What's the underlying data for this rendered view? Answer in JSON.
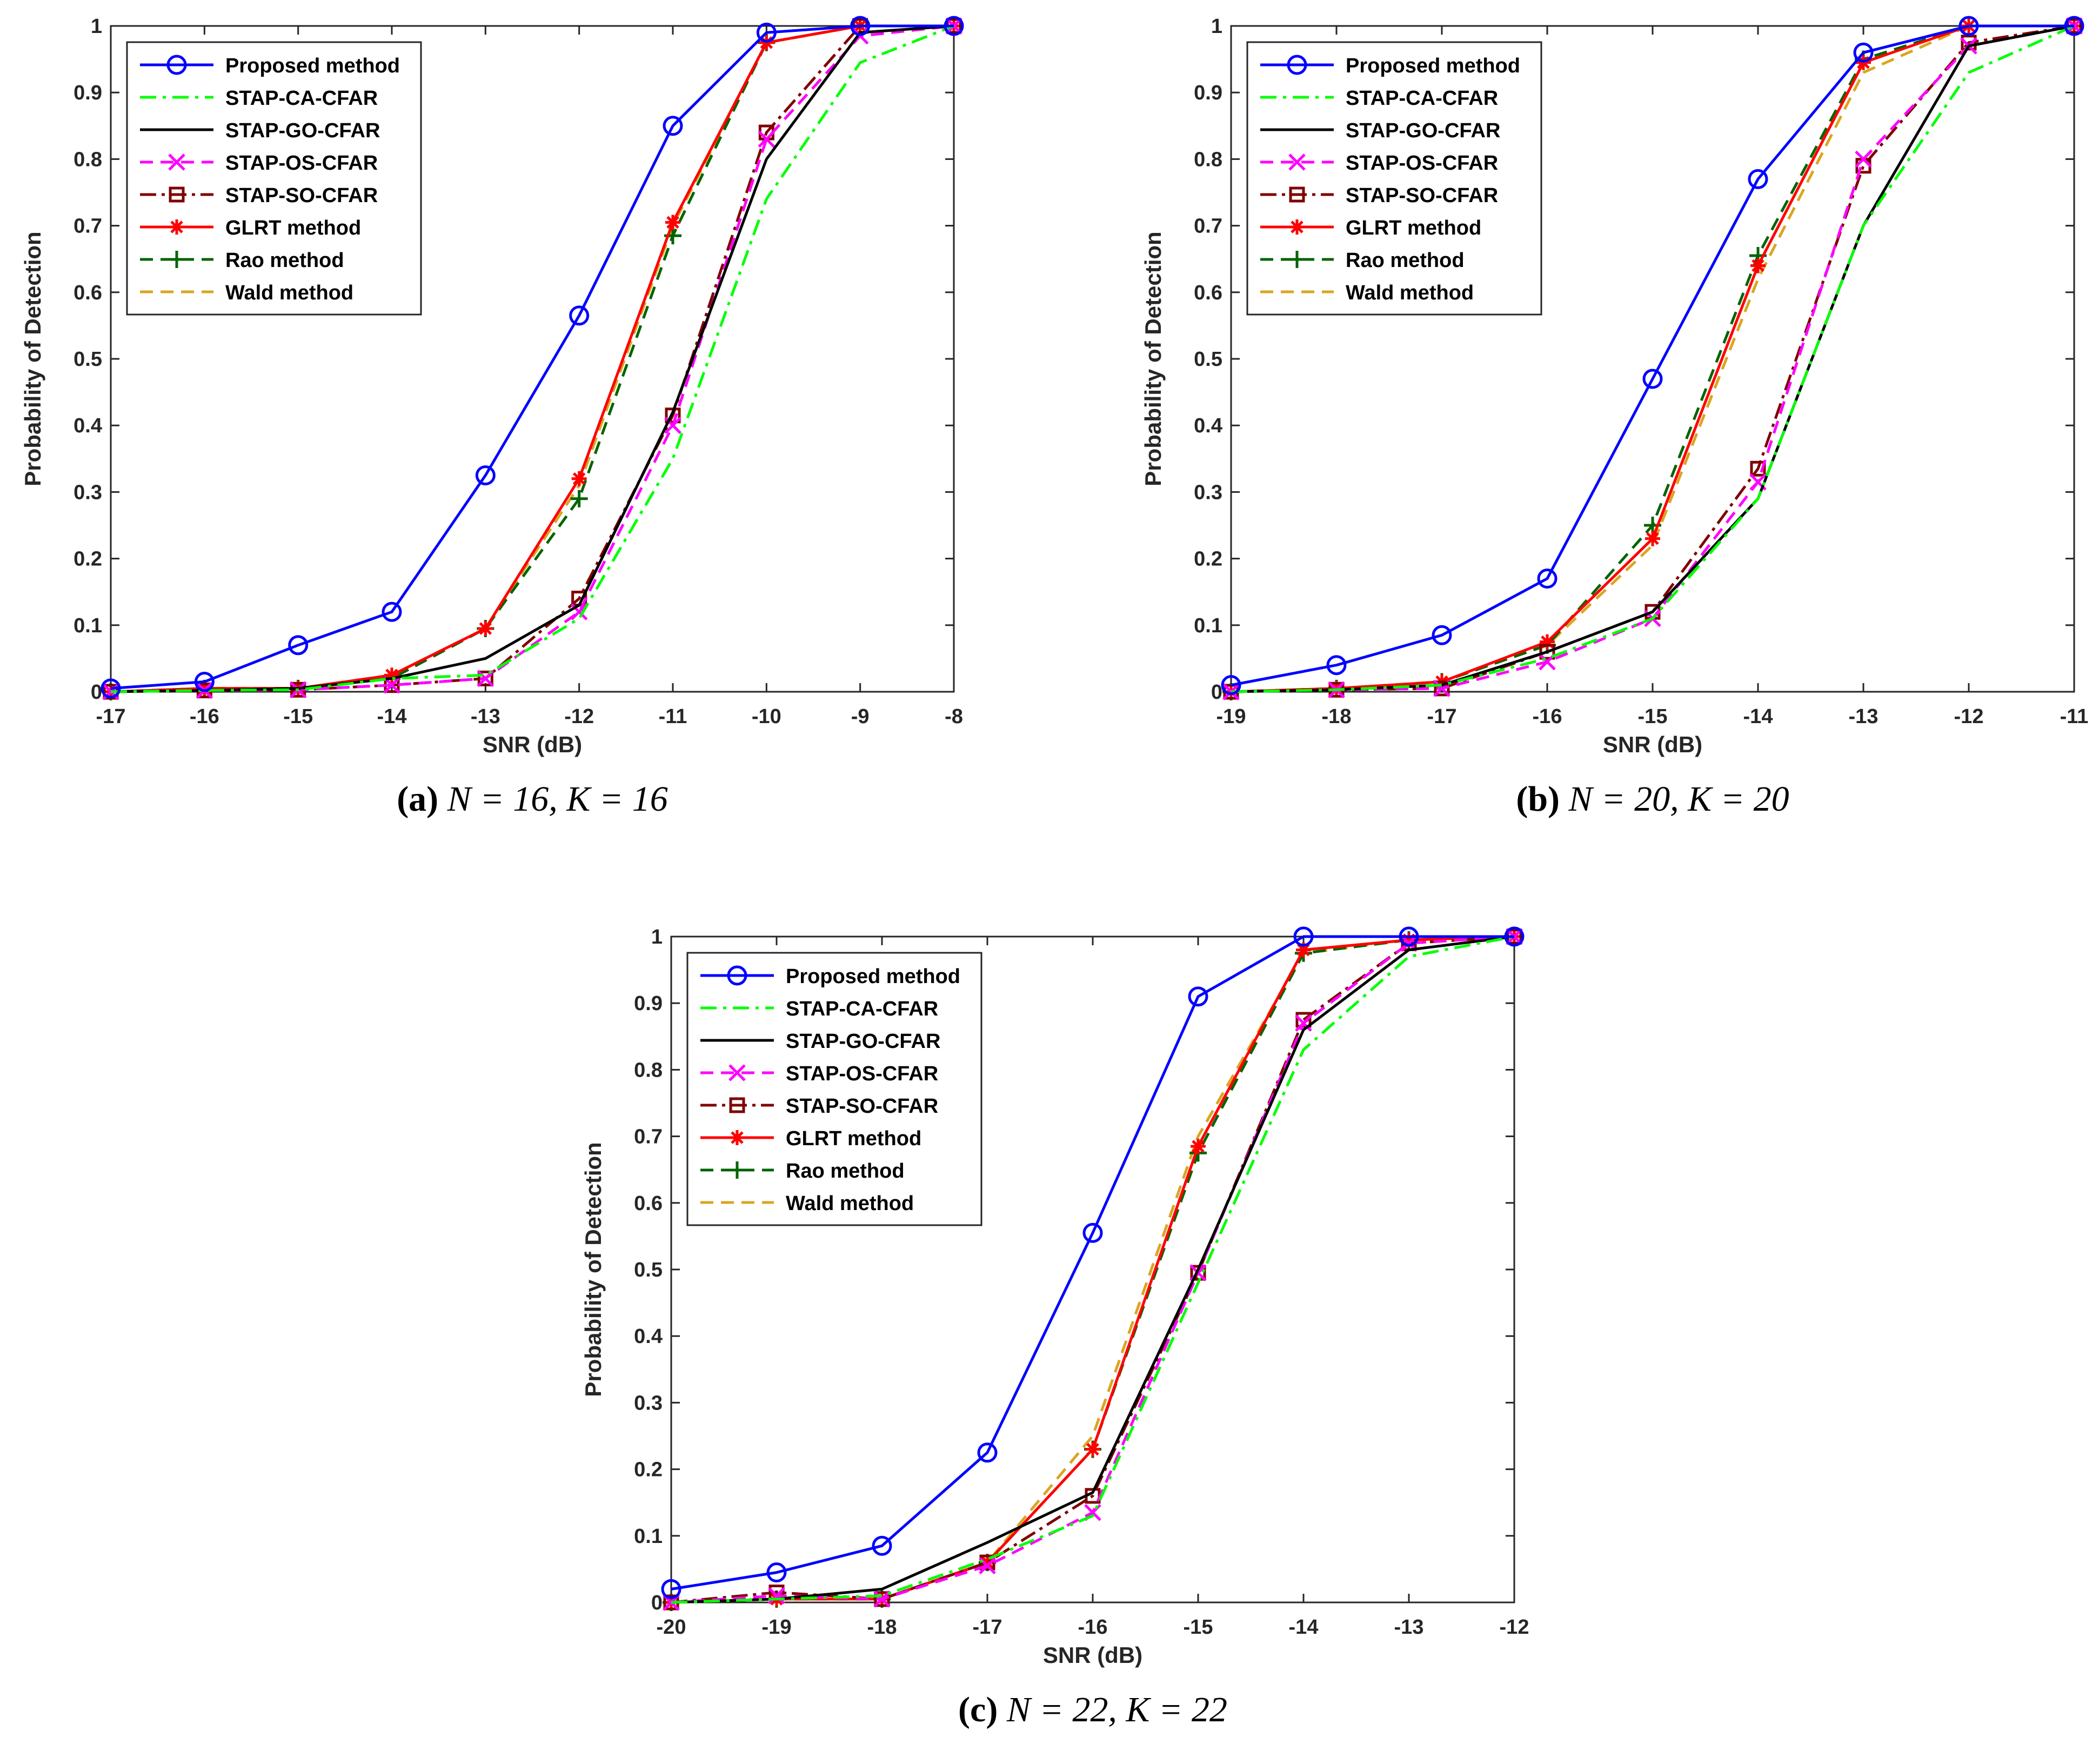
{
  "chart_data": [
    {
      "type": "line",
      "caption_label": "(a)",
      "caption_text": "N = 16,  K = 16",
      "xlabel": "SNR (dB)",
      "ylabel": "Probability of Detection",
      "xlim": [
        -17,
        -8
      ],
      "ylim": [
        0,
        1
      ],
      "xticks": [
        -17,
        -16,
        -15,
        -14,
        -13,
        -12,
        -11,
        -10,
        -9,
        -8
      ],
      "xtick_labels": [
        "-17",
        "-16",
        "-15",
        "-14",
        "-13",
        "-12",
        "-11",
        "-10",
        "-9",
        "-8"
      ],
      "yticks": [
        0,
        0.1,
        0.2,
        0.3,
        0.4,
        0.5,
        0.6,
        0.7,
        0.8,
        0.9,
        1
      ],
      "ytick_labels": [
        "0",
        "0.1",
        "0.2",
        "0.3",
        "0.4",
        "0.5",
        "0.6",
        "0.7",
        "0.8",
        "0.9",
        "1"
      ],
      "legend_position": "top-left",
      "x": [
        -17,
        -16,
        -15,
        -14,
        -13,
        -12,
        -11,
        -10,
        -9,
        -8
      ],
      "series": [
        {
          "name": "Proposed method",
          "values": [
            0.005,
            0.015,
            0.07,
            0.12,
            0.325,
            0.565,
            0.85,
            0.99,
            1.0,
            1.0
          ]
        },
        {
          "name": "STAP-CA-CFAR",
          "values": [
            0.0,
            0.002,
            0.003,
            0.02,
            0.025,
            0.11,
            0.35,
            0.74,
            0.945,
            1.0
          ]
        },
        {
          "name": "STAP-GO-CFAR",
          "values": [
            0.0,
            0.002,
            0.005,
            0.02,
            0.05,
            0.13,
            0.42,
            0.8,
            0.99,
            1.0
          ]
        },
        {
          "name": "STAP-OS-CFAR",
          "values": [
            0.0,
            0.002,
            0.003,
            0.01,
            0.02,
            0.12,
            0.4,
            0.83,
            0.985,
            1.0
          ]
        },
        {
          "name": "STAP-SO-CFAR",
          "values": [
            0.0,
            0.002,
            0.003,
            0.01,
            0.02,
            0.14,
            0.415,
            0.84,
            1.0,
            1.0
          ]
        },
        {
          "name": "GLRT method",
          "values": [
            0.0,
            0.005,
            0.005,
            0.025,
            0.095,
            0.32,
            0.705,
            0.975,
            1.0,
            1.0
          ]
        },
        {
          "name": "Rao method",
          "values": [
            0.0,
            0.005,
            0.005,
            0.02,
            0.095,
            0.29,
            0.685,
            0.975,
            1.0,
            1.0
          ]
        },
        {
          "name": "Wald method",
          "values": [
            0.0,
            0.005,
            0.005,
            0.025,
            0.095,
            0.31,
            0.7,
            0.975,
            1.0,
            1.0
          ]
        }
      ]
    },
    {
      "type": "line",
      "caption_label": "(b)",
      "caption_text": "N = 20,  K = 20",
      "xlabel": "SNR (dB)",
      "ylabel": "Probability of Detection",
      "xlim": [
        -19,
        -11
      ],
      "ylim": [
        0,
        1
      ],
      "xticks": [
        -19,
        -18,
        -17,
        -16,
        -15,
        -14,
        -13,
        -12,
        -11
      ],
      "xtick_labels": [
        "-19",
        "-18",
        "-17",
        "-16",
        "-15",
        "-14",
        "-13",
        "-12",
        "-11"
      ],
      "yticks": [
        0,
        0.1,
        0.2,
        0.3,
        0.4,
        0.5,
        0.6,
        0.7,
        0.8,
        0.9,
        1
      ],
      "ytick_labels": [
        "0",
        "0.1",
        "0.2",
        "0.3",
        "0.4",
        "0.5",
        "0.6",
        "0.7",
        "0.8",
        "0.9",
        "1"
      ],
      "legend_position": "top-left",
      "x": [
        -19,
        -18,
        -17,
        -16,
        -15,
        -14,
        -13,
        -12,
        -11
      ],
      "series": [
        {
          "name": "Proposed method",
          "values": [
            0.01,
            0.04,
            0.085,
            0.17,
            0.47,
            0.77,
            0.96,
            1.0,
            1.0
          ]
        },
        {
          "name": "STAP-CA-CFAR",
          "values": [
            0.0,
            0.003,
            0.01,
            0.05,
            0.11,
            0.29,
            0.7,
            0.93,
            1.0
          ]
        },
        {
          "name": "STAP-GO-CFAR",
          "values": [
            0.0,
            0.003,
            0.01,
            0.06,
            0.12,
            0.29,
            0.7,
            0.97,
            1.0
          ]
        },
        {
          "name": "STAP-OS-CFAR",
          "values": [
            0.0,
            0.003,
            0.005,
            0.045,
            0.11,
            0.315,
            0.8,
            0.97,
            1.0
          ]
        },
        {
          "name": "STAP-SO-CFAR",
          "values": [
            0.0,
            0.003,
            0.005,
            0.06,
            0.12,
            0.335,
            0.79,
            0.975,
            1.0
          ]
        },
        {
          "name": "GLRT method",
          "values": [
            0.0,
            0.005,
            0.015,
            0.075,
            0.23,
            0.64,
            0.945,
            1.0,
            1.0
          ]
        },
        {
          "name": "Rao method",
          "values": [
            0.0,
            0.005,
            0.015,
            0.07,
            0.25,
            0.655,
            0.95,
            1.0,
            1.0
          ]
        },
        {
          "name": "Wald method",
          "values": [
            0.0,
            0.005,
            0.015,
            0.07,
            0.22,
            0.62,
            0.93,
            1.0,
            1.0
          ]
        }
      ]
    },
    {
      "type": "line",
      "caption_label": "(c)",
      "caption_text": "N = 22,  K = 22",
      "xlabel": "SNR (dB)",
      "ylabel": "Probability of Detection",
      "xlim": [
        -20,
        -12
      ],
      "ylim": [
        0,
        1
      ],
      "xticks": [
        -20,
        -19,
        -18,
        -17,
        -16,
        -15,
        -14,
        -13,
        -12
      ],
      "xtick_labels": [
        "-20",
        "-19",
        "-18",
        "-17",
        "-16",
        "-15",
        "-14",
        "-13",
        "-12"
      ],
      "yticks": [
        0,
        0.1,
        0.2,
        0.3,
        0.4,
        0.5,
        0.6,
        0.7,
        0.8,
        0.9,
        1
      ],
      "ytick_labels": [
        "0",
        "0.1",
        "0.2",
        "0.3",
        "0.4",
        "0.5",
        "0.6",
        "0.7",
        "0.8",
        "0.9",
        "1"
      ],
      "legend_position": "top-left",
      "x": [
        -20,
        -19,
        -18,
        -17,
        -16,
        -15,
        -14,
        -13,
        -12
      ],
      "series": [
        {
          "name": "Proposed method",
          "values": [
            0.02,
            0.045,
            0.085,
            0.225,
            0.555,
            0.91,
            1.0,
            1.0,
            1.0
          ]
        },
        {
          "name": "STAP-CA-CFAR",
          "values": [
            0.0,
            0.005,
            0.01,
            0.065,
            0.13,
            0.48,
            0.83,
            0.97,
            1.0
          ]
        },
        {
          "name": "STAP-GO-CFAR",
          "values": [
            0.0,
            0.005,
            0.02,
            0.09,
            0.165,
            0.5,
            0.86,
            0.98,
            1.0
          ]
        },
        {
          "name": "STAP-OS-CFAR",
          "values": [
            0.0,
            0.01,
            0.005,
            0.055,
            0.135,
            0.495,
            0.87,
            0.99,
            1.0
          ]
        },
        {
          "name": "STAP-SO-CFAR",
          "values": [
            0.0,
            0.015,
            0.005,
            0.06,
            0.16,
            0.495,
            0.875,
            0.99,
            1.0
          ]
        },
        {
          "name": "GLRT method",
          "values": [
            0.0,
            0.005,
            0.005,
            0.06,
            0.23,
            0.685,
            0.98,
            0.995,
            1.0
          ]
        },
        {
          "name": "Rao method",
          "values": [
            0.0,
            0.005,
            0.005,
            0.06,
            0.23,
            0.675,
            0.975,
            0.995,
            1.0
          ]
        },
        {
          "name": "Wald method",
          "values": [
            0.0,
            0.005,
            0.005,
            0.06,
            0.25,
            0.7,
            0.975,
            0.995,
            1.0
          ]
        }
      ]
    }
  ],
  "series_styles": [
    {
      "color": "#0000ff",
      "dash": "",
      "marker": "circle"
    },
    {
      "color": "#00ff00",
      "dash": "30,12,6,12",
      "marker": "none"
    },
    {
      "color": "#000000",
      "dash": "",
      "marker": "none"
    },
    {
      "color": "#ff00ff",
      "dash": "24,14",
      "marker": "x"
    },
    {
      "color": "#800000",
      "dash": "30,10,6,10",
      "marker": "square"
    },
    {
      "color": "#ff0000",
      "dash": "",
      "marker": "asterisk"
    },
    {
      "color": "#006400",
      "dash": "24,14",
      "marker": "plus"
    },
    {
      "color": "#daa520",
      "dash": "24,14",
      "marker": "none"
    }
  ]
}
